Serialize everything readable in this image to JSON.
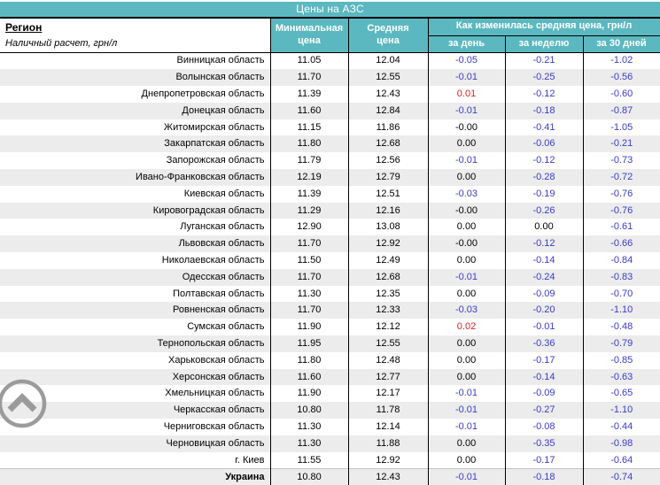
{
  "header": {
    "title": "Цены на АЗС",
    "region_label": "Регион",
    "region_sublabel": "Наличный расчет, грн/л",
    "col_min": "Минимальная\nцена",
    "col_avg": "Средняя\nцена",
    "col_change_group": "Как изменилась средняя цена, грн/л",
    "col_day": "за день",
    "col_week": "за неделю",
    "col_30days": "за 30 дней"
  },
  "colors": {
    "accent_teal": "#5bb8c0",
    "negative_blue": "#3a3ad0",
    "positive_red": "#e02020",
    "stripe_gray": "#ececec",
    "icon_gray": "#9b9b9b"
  },
  "icons": {
    "scroll_top": "chevron-up-icon"
  },
  "table": {
    "rows": [
      {
        "region": "Винницкая область",
        "min": "11.05",
        "avg": "12.04",
        "day": "-0.05",
        "week": "-0.21",
        "days30": "-1.02"
      },
      {
        "region": "Волынская область",
        "min": "11.70",
        "avg": "12.55",
        "day": "-0.01",
        "week": "-0.25",
        "days30": "-0.56"
      },
      {
        "region": "Днепропетровская область",
        "min": "11.39",
        "avg": "12.43",
        "day": "0.01",
        "week": "-0.12",
        "days30": "-0.60"
      },
      {
        "region": "Донецкая область",
        "min": "11.60",
        "avg": "12.84",
        "day": "-0.01",
        "week": "-0.18",
        "days30": "-0.87"
      },
      {
        "region": "Житомирская область",
        "min": "11.15",
        "avg": "11.86",
        "day": "-0.00",
        "week": "-0.41",
        "days30": "-1.05"
      },
      {
        "region": "Закарпатская область",
        "min": "11.80",
        "avg": "12.68",
        "day": "0.00",
        "week": "-0.06",
        "days30": "-0.21"
      },
      {
        "region": "Запорожская область",
        "min": "11.79",
        "avg": "12.56",
        "day": "-0.01",
        "week": "-0.12",
        "days30": "-0.73"
      },
      {
        "region": "Ивано-Франковская область",
        "min": "12.19",
        "avg": "12.79",
        "day": "0.00",
        "week": "-0.28",
        "days30": "-0.72"
      },
      {
        "region": "Киевская область",
        "min": "11.39",
        "avg": "12.51",
        "day": "-0.03",
        "week": "-0.19",
        "days30": "-0.76"
      },
      {
        "region": "Кировоградская область",
        "min": "11.29",
        "avg": "12.16",
        "day": "-0.00",
        "week": "-0.26",
        "days30": "-0.76"
      },
      {
        "region": "Луганская область",
        "min": "12.90",
        "avg": "13.08",
        "day": "0.00",
        "week": "0.00",
        "days30": "-0.61"
      },
      {
        "region": "Львовская область",
        "min": "11.70",
        "avg": "12.92",
        "day": "-0.00",
        "week": "-0.12",
        "days30": "-0.66"
      },
      {
        "region": "Николаевская область",
        "min": "11.50",
        "avg": "12.49",
        "day": "0.00",
        "week": "-0.14",
        "days30": "-0.84"
      },
      {
        "region": "Одесская область",
        "min": "11.70",
        "avg": "12.68",
        "day": "-0.01",
        "week": "-0.24",
        "days30": "-0.83"
      },
      {
        "region": "Полтавская область",
        "min": "11.30",
        "avg": "12.35",
        "day": "0.00",
        "week": "-0.09",
        "days30": "-0.70"
      },
      {
        "region": "Ровненская область",
        "min": "11.70",
        "avg": "12.33",
        "day": "-0.03",
        "week": "-0.20",
        "days30": "-1.10"
      },
      {
        "region": "Сумская область",
        "min": "11.90",
        "avg": "12.12",
        "day": "0.02",
        "week": "-0.01",
        "days30": "-0.48"
      },
      {
        "region": "Тернопольская область",
        "min": "11.95",
        "avg": "12.55",
        "day": "0.00",
        "week": "-0.36",
        "days30": "-0.79"
      },
      {
        "region": "Харьковская область",
        "min": "11.80",
        "avg": "12.48",
        "day": "0.00",
        "week": "-0.17",
        "days30": "-0.85"
      },
      {
        "region": "Херсонская область",
        "min": "11.60",
        "avg": "12.77",
        "day": "0.00",
        "week": "-0.14",
        "days30": "-0.63"
      },
      {
        "region": "Хмельницкая область",
        "min": "11.90",
        "avg": "12.17",
        "day": "-0.01",
        "week": "-0.09",
        "days30": "-0.65"
      },
      {
        "region": "Черкасская область",
        "min": "10.80",
        "avg": "11.78",
        "day": "-0.01",
        "week": "-0.27",
        "days30": "-1.10"
      },
      {
        "region": "Черниговская область",
        "min": "11.30",
        "avg": "12.14",
        "day": "-0.01",
        "week": "-0.08",
        "days30": "-0.44"
      },
      {
        "region": "Черновицкая область",
        "min": "11.30",
        "avg": "11.88",
        "day": "0.00",
        "week": "-0.35",
        "days30": "-0.98"
      },
      {
        "region": "г. Киев",
        "min": "11.55",
        "avg": "12.92",
        "day": "0.00",
        "week": "-0.17",
        "days30": "-0.64"
      },
      {
        "region": "Украина",
        "min": "10.80",
        "avg": "12.43",
        "day": "-0.01",
        "week": "-0.18",
        "days30": "-0.74",
        "bold": true
      }
    ]
  }
}
